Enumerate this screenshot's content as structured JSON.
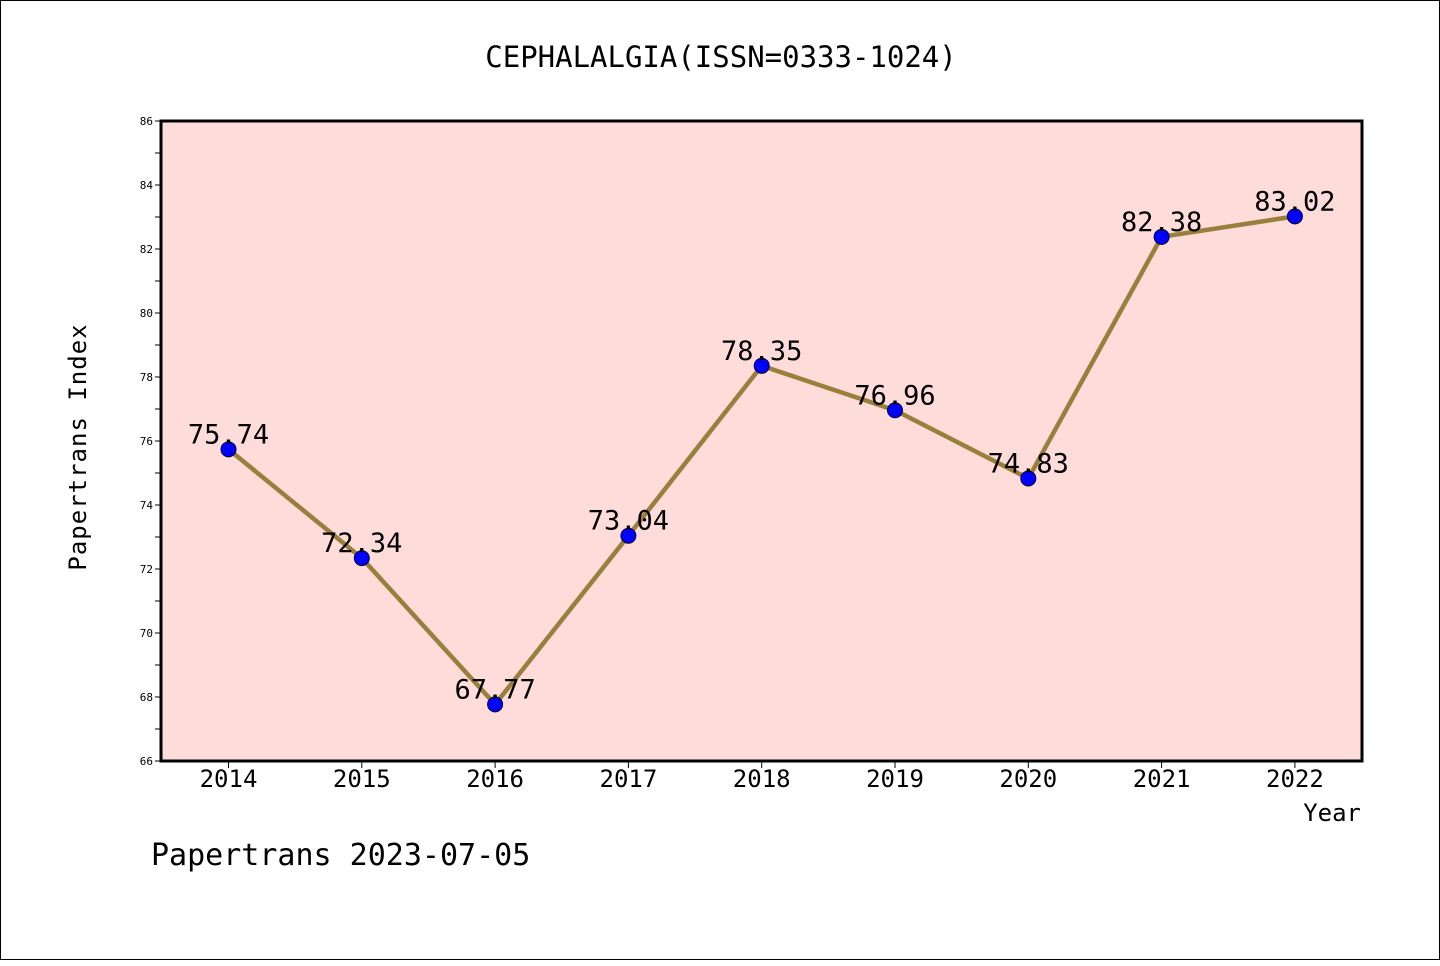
{
  "chart_data": {
    "type": "line",
    "title": "CEPHALALGIA(ISSN=0333-1024)",
    "xlabel": "Year",
    "ylabel": "Papertrans Index",
    "categories": [
      "2014",
      "2015",
      "2016",
      "2017",
      "2018",
      "2019",
      "2020",
      "2021",
      "2022"
    ],
    "values": [
      75.74,
      72.34,
      67.77,
      73.04,
      78.35,
      76.96,
      74.83,
      82.38,
      83.02
    ],
    "data_labels": [
      "75.74",
      "72.34",
      "67.77",
      "73.04",
      "78.35",
      "76.96",
      "74.83",
      "82.38",
      "83.02"
    ],
    "ylim": [
      66,
      86
    ],
    "yticks": [
      66,
      68,
      70,
      72,
      74,
      76,
      78,
      80,
      82,
      84,
      86
    ],
    "grid": false,
    "legend": "none",
    "colors": {
      "plot_background": "#FDDCDA",
      "line": "#9A7F3C",
      "marker": "#0000FF",
      "axes": "#000000"
    }
  },
  "footer": "Papertrans 2023-07-05"
}
